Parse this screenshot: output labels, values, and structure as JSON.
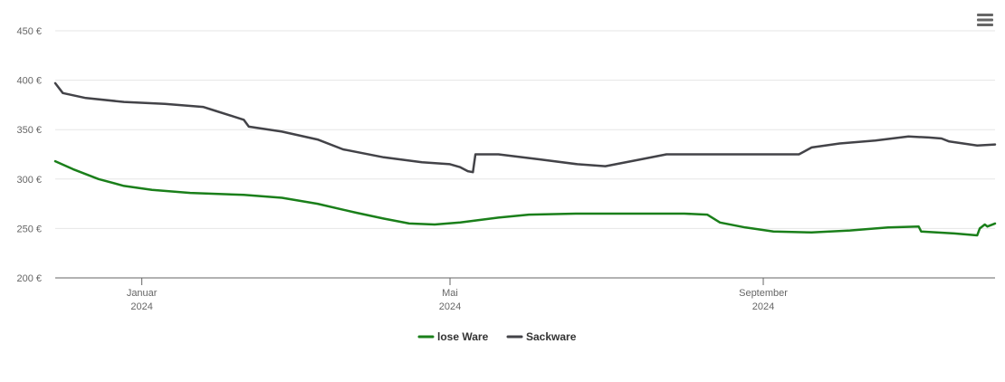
{
  "chart_data": {
    "type": "line",
    "title": "",
    "xlabel": "",
    "ylabel": "",
    "ylim": [
      200,
      450
    ],
    "yticks": [
      {
        "value": 200,
        "label": "200 €"
      },
      {
        "value": 250,
        "label": "250 €"
      },
      {
        "value": 300,
        "label": "300 €"
      },
      {
        "value": 350,
        "label": "350 €"
      },
      {
        "value": 400,
        "label": "400 €"
      },
      {
        "value": 450,
        "label": "450 €"
      }
    ],
    "xlim": [
      "2023-11-28",
      "2024-12-01"
    ],
    "xticks": [
      {
        "date": "2024-01-01",
        "label": "Januar",
        "year": "2024"
      },
      {
        "date": "2024-05-01",
        "label": "Mai",
        "year": "2024"
      },
      {
        "date": "2024-09-01",
        "label": "September",
        "year": "2024"
      }
    ],
    "grid": true,
    "legend": "bottom-center",
    "series": [
      {
        "name": "lose Ware",
        "color": "#1a7f1a",
        "points": [
          [
            "2023-11-28",
            318
          ],
          [
            "2023-12-05",
            310
          ],
          [
            "2023-12-15",
            300
          ],
          [
            "2023-12-25",
            293
          ],
          [
            "2024-01-05",
            289
          ],
          [
            "2024-01-20",
            286
          ],
          [
            "2024-02-10",
            284
          ],
          [
            "2024-02-25",
            281
          ],
          [
            "2024-03-10",
            275
          ],
          [
            "2024-03-25",
            266
          ],
          [
            "2024-04-05",
            260
          ],
          [
            "2024-04-15",
            255
          ],
          [
            "2024-04-25",
            254
          ],
          [
            "2024-05-05",
            256
          ],
          [
            "2024-05-20",
            261
          ],
          [
            "2024-06-01",
            264
          ],
          [
            "2024-06-20",
            265
          ],
          [
            "2024-07-15",
            265
          ],
          [
            "2024-08-01",
            265
          ],
          [
            "2024-08-10",
            264
          ],
          [
            "2024-08-15",
            256
          ],
          [
            "2024-08-25",
            251
          ],
          [
            "2024-09-05",
            247
          ],
          [
            "2024-09-20",
            246
          ],
          [
            "2024-10-05",
            248
          ],
          [
            "2024-10-20",
            251
          ],
          [
            "2024-11-01",
            252
          ],
          [
            "2024-11-02",
            247
          ],
          [
            "2024-11-15",
            245
          ],
          [
            "2024-11-24",
            243
          ],
          [
            "2024-11-25",
            250
          ],
          [
            "2024-11-27",
            254
          ],
          [
            "2024-11-28",
            252
          ],
          [
            "2024-12-01",
            255
          ]
        ]
      },
      {
        "name": "Sackware",
        "color": "#434348",
        "points": [
          [
            "2023-11-28",
            397
          ],
          [
            "2023-12-01",
            387
          ],
          [
            "2023-12-10",
            382
          ],
          [
            "2023-12-25",
            378
          ],
          [
            "2024-01-10",
            376
          ],
          [
            "2024-01-25",
            373
          ],
          [
            "2024-01-30",
            369
          ],
          [
            "2024-02-10",
            360
          ],
          [
            "2024-02-12",
            353
          ],
          [
            "2024-02-25",
            348
          ],
          [
            "2024-03-10",
            340
          ],
          [
            "2024-03-20",
            330
          ],
          [
            "2024-04-05",
            322
          ],
          [
            "2024-04-20",
            317
          ],
          [
            "2024-05-01",
            315
          ],
          [
            "2024-05-05",
            312
          ],
          [
            "2024-05-08",
            308
          ],
          [
            "2024-05-10",
            307
          ],
          [
            "2024-05-11",
            325
          ],
          [
            "2024-05-20",
            325
          ],
          [
            "2024-06-05",
            320
          ],
          [
            "2024-06-20",
            315
          ],
          [
            "2024-07-01",
            313
          ],
          [
            "2024-07-15",
            320
          ],
          [
            "2024-07-25",
            325
          ],
          [
            "2024-08-15",
            325
          ],
          [
            "2024-09-05",
            325
          ],
          [
            "2024-09-15",
            325
          ],
          [
            "2024-09-20",
            332
          ],
          [
            "2024-10-01",
            336
          ],
          [
            "2024-10-15",
            339
          ],
          [
            "2024-10-28",
            343
          ],
          [
            "2024-11-05",
            342
          ],
          [
            "2024-11-10",
            341
          ],
          [
            "2024-11-13",
            338
          ],
          [
            "2024-11-24",
            334
          ],
          [
            "2024-12-01",
            335
          ]
        ]
      }
    ]
  },
  "menu": {
    "icon": "hamburger-menu-icon"
  }
}
